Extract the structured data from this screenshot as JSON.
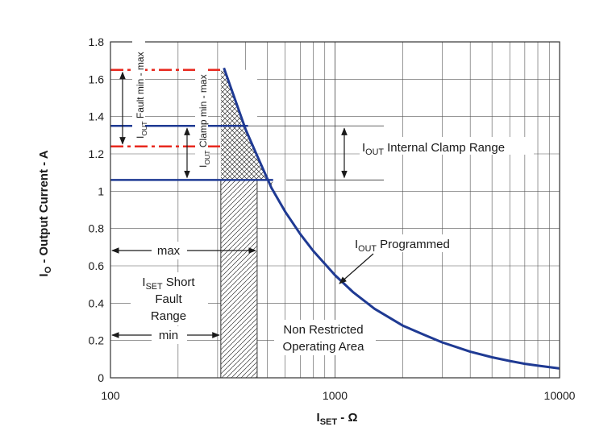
{
  "chart_data": {
    "type": "line",
    "x_scale": "log",
    "xlim": [
      100,
      10000
    ],
    "ylim": [
      0,
      1.8
    ],
    "grid": true,
    "xlabel": {
      "main": "I",
      "sub": "SET",
      "rest": "  -  Ω"
    },
    "ylabel": {
      "main": "I",
      "sub": "O",
      "rest": " - Output Current - A"
    },
    "x_major_ticks": [
      {
        "value": 100,
        "label": "100"
      },
      {
        "value": 1000,
        "label": "1000"
      },
      {
        "value": 10000,
        "label": "10000"
      }
    ],
    "y_ticks": [
      {
        "value": 0,
        "label": "0"
      },
      {
        "value": 0.2,
        "label": "0.2"
      },
      {
        "value": 0.4,
        "label": "0.4"
      },
      {
        "value": 0.6,
        "label": "0.6"
      },
      {
        "value": 0.8,
        "label": "0.8"
      },
      {
        "value": 1.0,
        "label": "1"
      },
      {
        "value": 1.2,
        "label": "1.2"
      },
      {
        "value": 1.4,
        "label": "1.4"
      },
      {
        "value": 1.6,
        "label": "1.6"
      },
      {
        "value": 1.8,
        "label": "1.8"
      }
    ],
    "series": [
      {
        "name": "IOUT Programmed",
        "color": "#1f3a93",
        "x": [
          320,
          400,
          450,
          520,
          600,
          700,
          800,
          1000,
          1200,
          1500,
          2000,
          2500,
          3000,
          4000,
          5000,
          6000,
          7000,
          8000,
          10000
        ],
        "y": [
          1.66,
          1.33,
          1.19,
          1.02,
          0.89,
          0.77,
          0.68,
          0.55,
          0.46,
          0.37,
          0.28,
          0.23,
          0.19,
          0.14,
          0.11,
          0.09,
          0.075,
          0.065,
          0.05
        ]
      }
    ],
    "reference_lines": [
      {
        "label": "IOUT Fault max",
        "y": 1.65,
        "x_end": 310,
        "style": "dash-dot",
        "color": "#e8281e"
      },
      {
        "label": "IOUT Fault min",
        "y": 1.24,
        "x_end": 310,
        "style": "dash-dot",
        "color": "#e8281e"
      },
      {
        "label": "IOUT Clamp max",
        "y": 1.35,
        "x_end": 410,
        "style": "solid",
        "color": "#1f3a93"
      },
      {
        "label": "IOUT Clamp min",
        "y": 1.06,
        "x_end": 530,
        "style": "solid",
        "color": "#1f3a93"
      }
    ],
    "regions": [
      {
        "name": "ISET Short Fault Range",
        "x_min": 310,
        "x_max": 450
      }
    ],
    "annotations": {
      "fault_label": {
        "main": "I",
        "sub": "OUT",
        "rest": " Fault   min - max"
      },
      "clamp_label": {
        "main": "I",
        "sub": "OUT",
        "rest": " Clamp  min - max"
      },
      "internal_clamp_label": {
        "main": "I",
        "sub": "OUT",
        "rest": " Internal Clamp Range"
      },
      "programmed_label": {
        "main": "I",
        "sub": "OUT",
        "rest": " Programmed"
      },
      "max_label": "max",
      "min_label": "min",
      "short_fault_line1": {
        "main": "I",
        "sub": "SET",
        "rest": " Short"
      },
      "short_fault_line2": "Fault",
      "short_fault_line3": "Range",
      "non_restricted_line1": "Non Restricted",
      "non_restricted_line2": "Operating Area"
    }
  }
}
